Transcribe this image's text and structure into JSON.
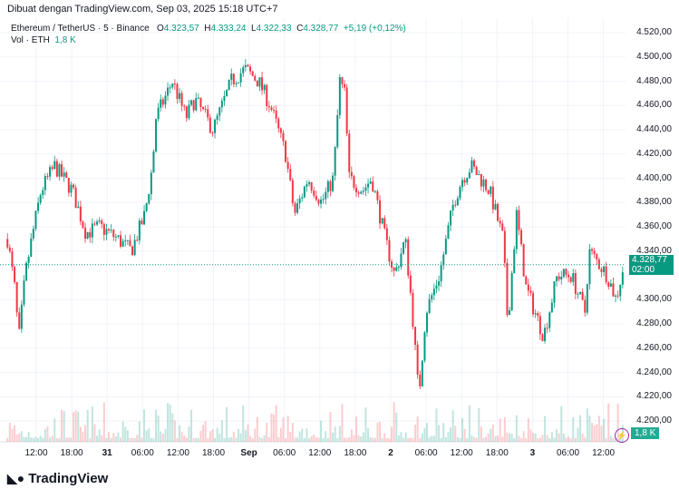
{
  "credit": "Dibuat dengan TradingView.com, Sep 03, 2025 15:18 UTC+7",
  "symbol": "Ethereum / TetherUS · 5 · Binance",
  "ohlc": {
    "o_label": "O",
    "o": "4.323,57",
    "h_label": "H",
    "h": "4.333,24",
    "l_label": "L",
    "l": "4.322,33",
    "c_label": "C",
    "c": "4.328,77",
    "change": "+5,19 (+0,12%)"
  },
  "volume": {
    "label": "Vol · ETH",
    "value": "1,8 K"
  },
  "last_price": {
    "price": "4.328,77",
    "countdown": "02:00"
  },
  "price_axis": [
    "4.520,00",
    "4.500,00",
    "4.480,00",
    "4.460,00",
    "4.440,00",
    "4.420,00",
    "4.400,00",
    "4.380,00",
    "4.360,00",
    "4.340,00",
    "4.300,00",
    "4.280,00",
    "4.260,00",
    "4.240,00",
    "4.220,00",
    "4.200,00"
  ],
  "time_axis": [
    {
      "t": "12:00"
    },
    {
      "t": "18:00"
    },
    {
      "t": "31",
      "bold": true
    },
    {
      "t": "06:00"
    },
    {
      "t": "12:00"
    },
    {
      "t": "18:00"
    },
    {
      "t": "Sep",
      "bold": true
    },
    {
      "t": "06:00"
    },
    {
      "t": "12:00"
    },
    {
      "t": "18:00"
    },
    {
      "t": "2",
      "bold": true
    },
    {
      "t": "06:00"
    },
    {
      "t": "12:00"
    },
    {
      "t": "18:00"
    },
    {
      "t": "3",
      "bold": true
    },
    {
      "t": "06:00"
    },
    {
      "t": "12:00"
    }
  ],
  "logo": "TradingView",
  "colors": {
    "up": "#089981",
    "down": "#f23645"
  },
  "chart_data": {
    "type": "candlestick",
    "price_range": [
      4190,
      4530
    ],
    "path_hours_price": [
      [
        0.5,
        4350
      ],
      [
        2,
        4300
      ],
      [
        2.3,
        4260
      ],
      [
        3.5,
        4320
      ],
      [
        4.6,
        4350
      ],
      [
        6.2,
        4390
      ],
      [
        8.5,
        4410
      ],
      [
        11.5,
        4390
      ],
      [
        13.8,
        4355
      ],
      [
        16.2,
        4360
      ],
      [
        19.2,
        4350
      ],
      [
        21.5,
        4340
      ],
      [
        23.8,
        4370
      ],
      [
        25.1,
        4410
      ],
      [
        25.7,
        4450
      ],
      [
        28.5,
        4480
      ],
      [
        30.8,
        4450
      ],
      [
        32.3,
        4465
      ],
      [
        35.4,
        4440
      ],
      [
        38.5,
        4480
      ],
      [
        40.8,
        4490
      ],
      [
        43.1,
        4480
      ],
      [
        45.1,
        4460
      ],
      [
        47.7,
        4420
      ],
      [
        49.2,
        4370
      ],
      [
        51.5,
        4400
      ],
      [
        53.8,
        4380
      ],
      [
        55.8,
        4400
      ],
      [
        56.9,
        4480
      ],
      [
        57.7,
        4470
      ],
      [
        58.5,
        4400
      ],
      [
        60.8,
        4390
      ],
      [
        62.3,
        4400
      ],
      [
        64.6,
        4350
      ],
      [
        66.2,
        4320
      ],
      [
        68,
        4350
      ],
      [
        69.2,
        4290
      ],
      [
        70.3,
        4220
      ],
      [
        71.5,
        4290
      ],
      [
        73.8,
        4320
      ],
      [
        76.2,
        4380
      ],
      [
        77.7,
        4400
      ],
      [
        79.2,
        4410
      ],
      [
        82.3,
        4390
      ],
      [
        84.6,
        4350
      ],
      [
        85.4,
        4280
      ],
      [
        86.9,
        4370
      ],
      [
        88.5,
        4310
      ],
      [
        90,
        4290
      ],
      [
        91.5,
        4270
      ],
      [
        93.8,
        4320
      ],
      [
        96.2,
        4320
      ],
      [
        97.7,
        4300
      ],
      [
        98.5,
        4290
      ],
      [
        99.2,
        4340
      ],
      [
        100.8,
        4330
      ],
      [
        102.3,
        4320
      ],
      [
        103.8,
        4300
      ],
      [
        105.1,
        4328.77
      ]
    ]
  }
}
